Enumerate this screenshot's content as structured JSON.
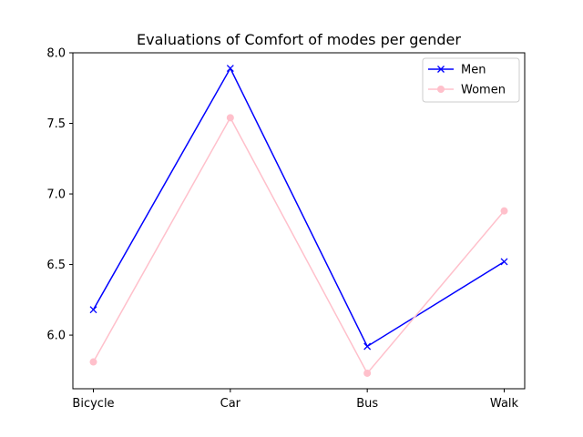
{
  "chart_data": {
    "type": "line",
    "title": "Evaluations of Comfort of modes per gender",
    "xlabel": "",
    "ylabel": "",
    "categories": [
      "Bicycle",
      "Car",
      "Bus",
      "Walk"
    ],
    "ylim": [
      5.62,
      8.0
    ],
    "yticks": [
      6.0,
      6.5,
      7.0,
      7.5,
      8.0
    ],
    "ytick_labels": [
      "6.0",
      "6.5",
      "7.0",
      "7.5",
      "8.0"
    ],
    "grid": false,
    "legend_position": "top-right",
    "series": [
      {
        "name": "Men",
        "values": [
          6.18,
          7.89,
          5.92,
          6.52
        ],
        "color": "#0000ff",
        "marker": "x"
      },
      {
        "name": "Women",
        "values": [
          5.81,
          7.54,
          5.73,
          6.88
        ],
        "color": "#ffc0cb",
        "marker": "o"
      }
    ]
  }
}
